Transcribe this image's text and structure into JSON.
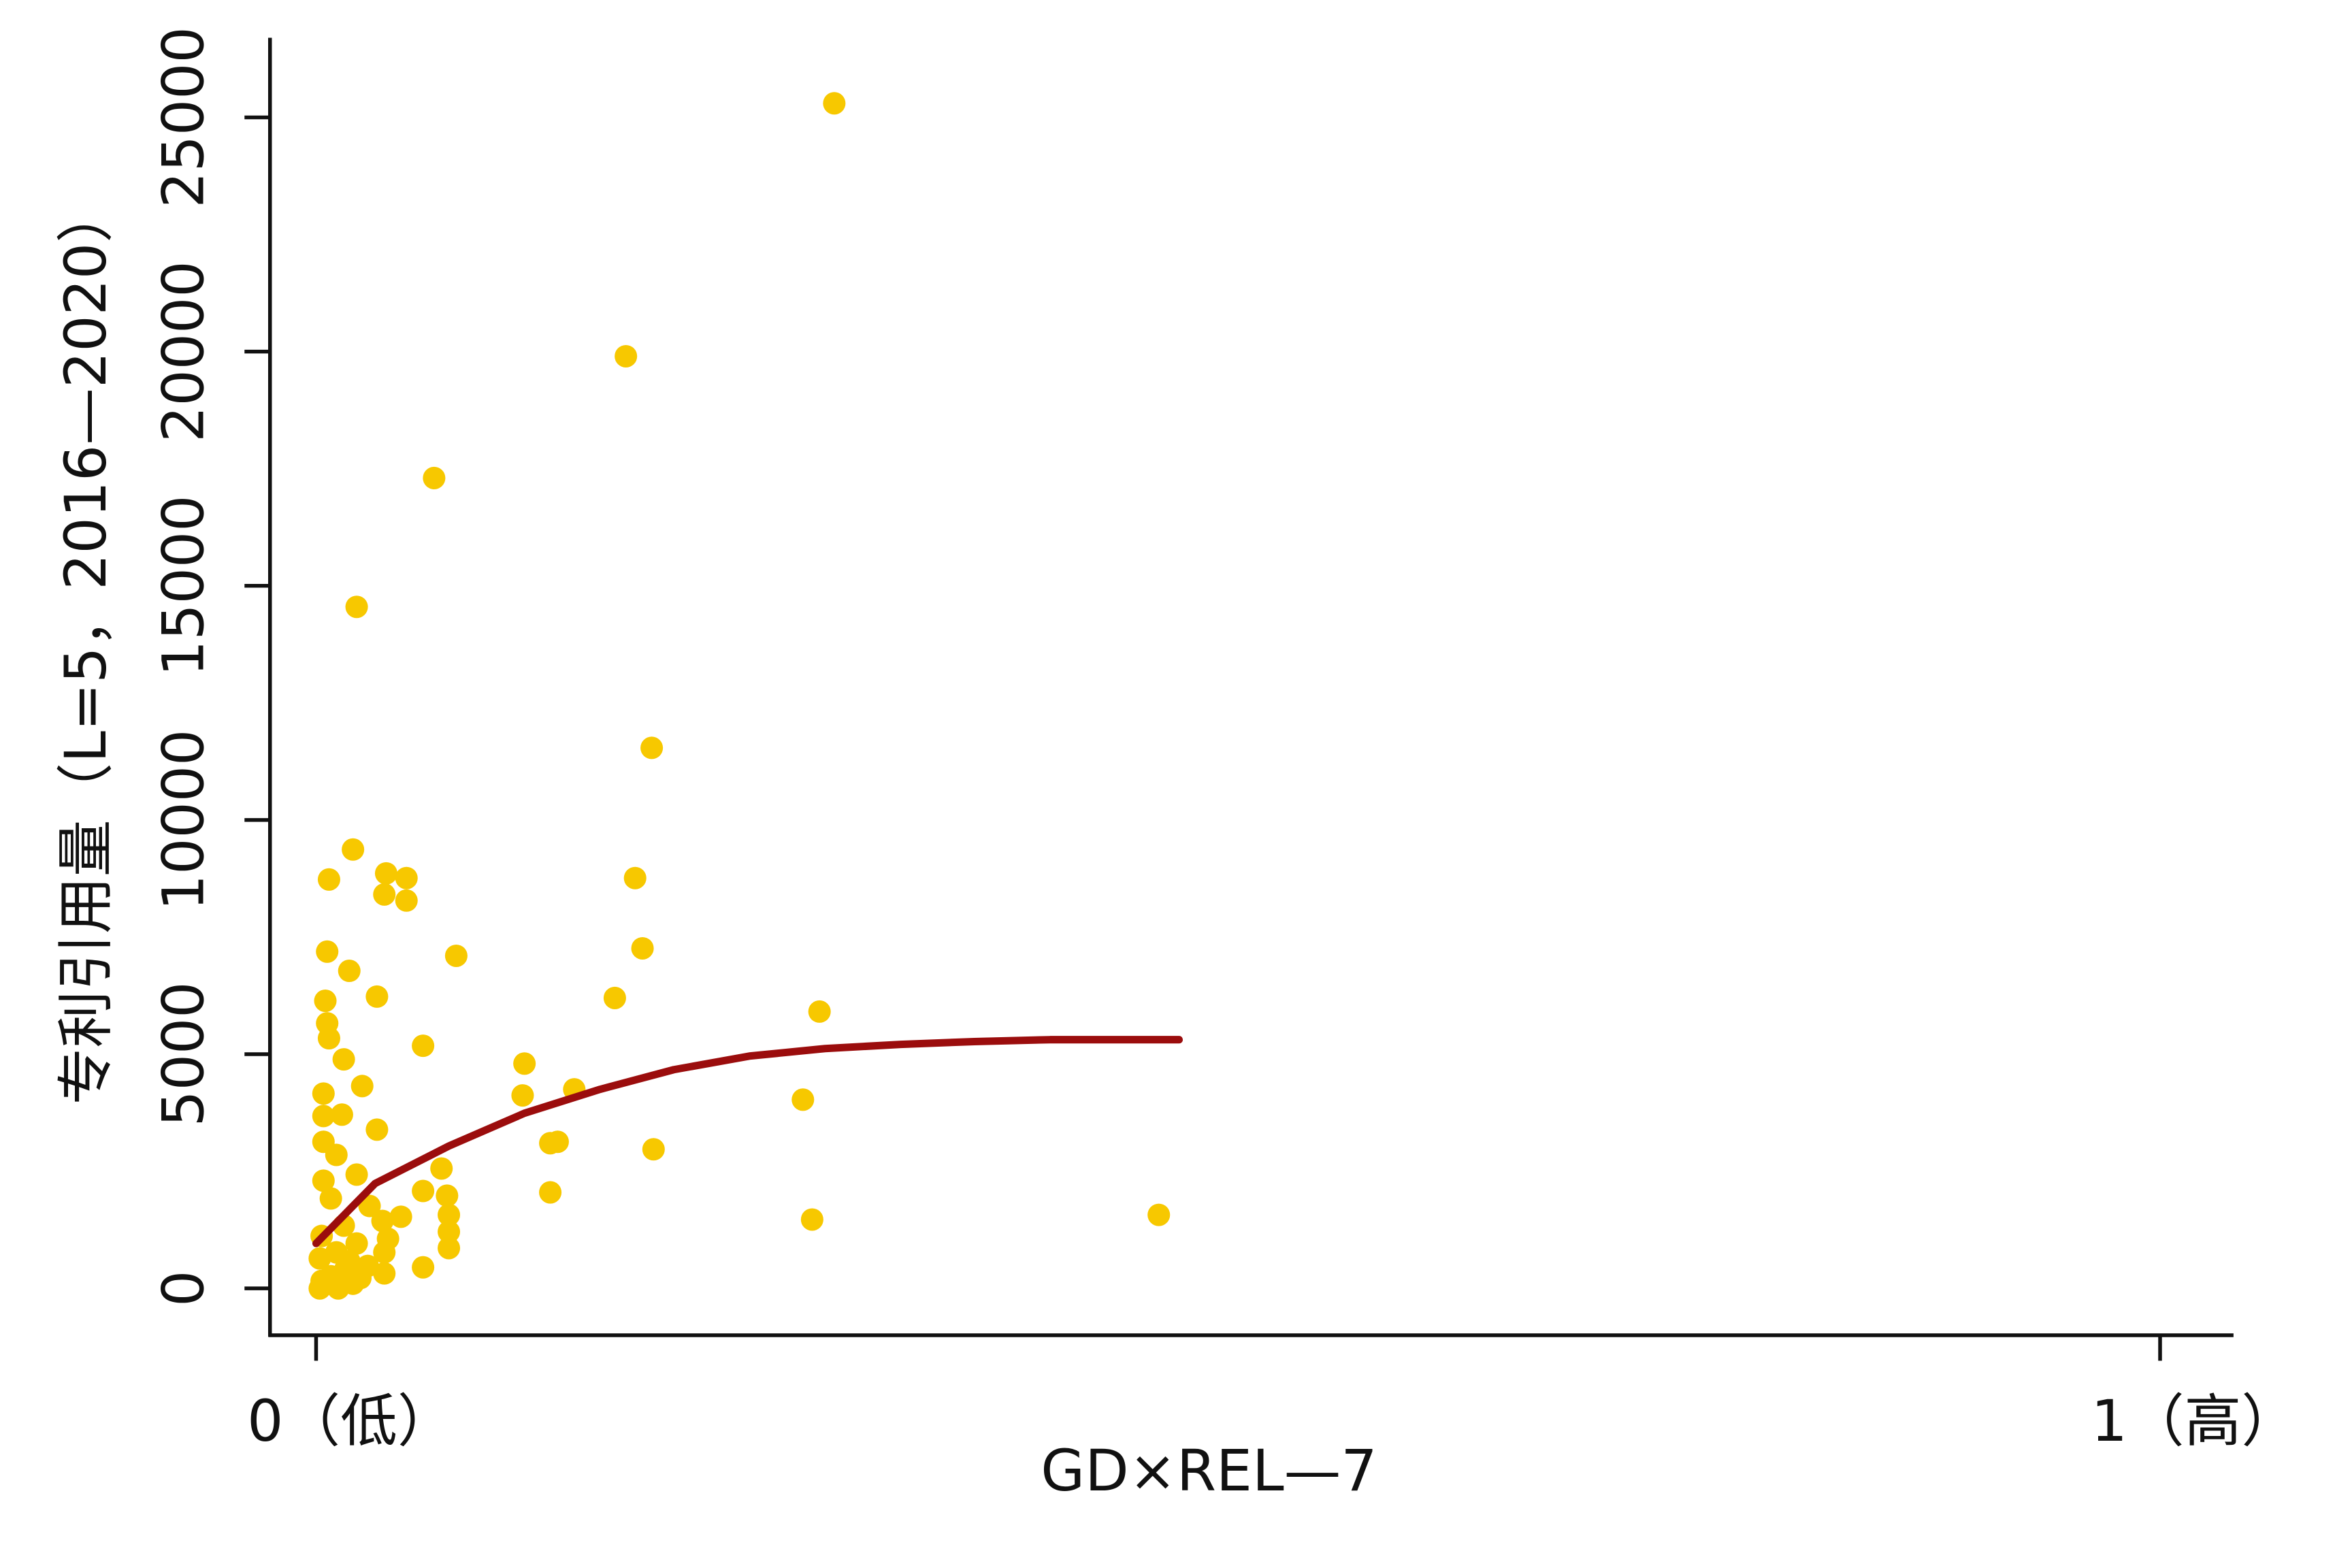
{
  "chart_data": {
    "type": "scatter",
    "x_label": "GD×REL—7",
    "y_label": "专利引用量（L=5，2016—2020）",
    "xlim": [
      -0.025,
      1.039
    ],
    "ylim": [
      -1000,
      26700
    ],
    "xticks": [
      {
        "value": 0,
        "label": "0（低）"
      },
      {
        "value": 1,
        "label": "1（高）"
      }
    ],
    "yticks": [
      0,
      5000,
      10000,
      15000,
      20000,
      25000
    ],
    "grid": false,
    "series": [
      {
        "type": "scatter",
        "color": "#f7c800",
        "x": [
          0.281,
          0.168,
          0.064,
          0.022,
          0.182,
          0.02,
          0.007,
          0.038,
          0.049,
          0.173,
          0.037,
          0.049,
          0.177,
          0.006,
          0.076,
          0.018,
          0.033,
          0.005,
          0.162,
          0.273,
          0.006,
          0.007,
          0.058,
          0.015,
          0.113,
          0.025,
          0.14,
          0.004,
          0.112,
          0.264,
          0.014,
          0.004,
          0.033,
          0.131,
          0.127,
          0.004,
          0.183,
          0.011,
          0.068,
          0.022,
          0.004,
          0.058,
          0.127,
          0.071,
          0.008,
          0.029,
          0.072,
          0.046,
          0.269,
          0.457,
          0.036,
          0.015,
          0.072,
          0.003,
          0.039,
          0.022,
          0.072,
          0.011,
          0.037,
          0.002,
          0.018,
          0.058,
          0.037,
          0.008,
          0.024,
          0.002,
          0.012,
          0.003,
          0.02,
          0.016,
          0.028
        ],
        "values": [
          25300,
          19900,
          17300,
          14550,
          11540,
          9370,
          8730,
          8860,
          8760,
          8760,
          8410,
          8280,
          7260,
          7190,
          7100,
          6780,
          6230,
          6140,
          6200,
          5910,
          5660,
          5340,
          5180,
          4890,
          4800,
          4320,
          4250,
          4160,
          4120,
          4030,
          3710,
          3680,
          3390,
          3130,
          3100,
          3130,
          2970,
          2850,
          2560,
          2430,
          2300,
          2080,
          2050,
          1980,
          1920,
          1760,
          1570,
          1530,
          1470,
          1570,
          1440,
          1340,
          1210,
          1120,
          1060,
          960,
          860,
          770,
          770,
          640,
          580,
          450,
          320,
          260,
          220,
          0,
          0,
          160,
          100,
          420,
          480
        ]
      },
      {
        "type": "line",
        "color": "#9b0d0d",
        "x": [
          0,
          0.032,
          0.072,
          0.113,
          0.154,
          0.194,
          0.235,
          0.276,
          0.317,
          0.357,
          0.398,
          0.468
        ],
        "values": [
          960,
          2240,
          3040,
          3740,
          4250,
          4670,
          4960,
          5120,
          5210,
          5270,
          5310,
          5310
        ]
      }
    ]
  }
}
